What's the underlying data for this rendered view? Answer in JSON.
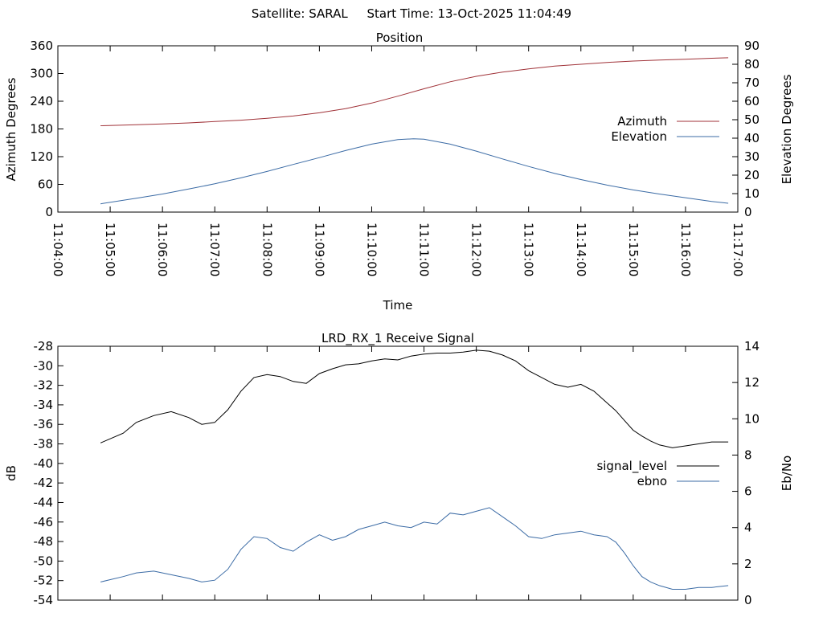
{
  "header": {
    "satellite_label": "Satellite:",
    "satellite_name": "SARAL",
    "start_label": "Start Time:",
    "start_time": "13-Oct-2025 11:04:49"
  },
  "chart_data": [
    {
      "type": "line",
      "title": "Position",
      "xlabel": "Time",
      "ylabel": "Azimuth Degrees",
      "y2label": "Elevation Degrees",
      "x_ticks": [
        "11:04:00",
        "11:05:00",
        "11:06:00",
        "11:07:00",
        "11:08:00",
        "11:09:00",
        "11:10:00",
        "11:11:00",
        "11:12:00",
        "11:13:00",
        "11:14:00",
        "11:15:00",
        "11:16:00",
        "11:17:00"
      ],
      "xlim": [
        "11:04:00",
        "11:17:00"
      ],
      "ylim": [
        0,
        360
      ],
      "y_ticks": [
        0,
        60,
        120,
        180,
        240,
        300,
        360
      ],
      "y2lim": [
        0,
        90
      ],
      "y2_ticks": [
        0,
        10,
        20,
        30,
        40,
        50,
        60,
        70,
        80,
        90
      ],
      "legend_position": "right",
      "grid": false,
      "series": [
        {
          "name": "Azimuth",
          "axis": "y",
          "color": "#a03238",
          "x": [
            "11:04:49",
            "11:05:30",
            "11:06:00",
            "11:06:30",
            "11:07:00",
            "11:07:30",
            "11:08:00",
            "11:08:30",
            "11:09:00",
            "11:09:30",
            "11:10:00",
            "11:10:30",
            "11:11:00",
            "11:11:30",
            "11:12:00",
            "11:12:30",
            "11:13:00",
            "11:13:30",
            "11:14:00",
            "11:14:30",
            "11:15:00",
            "11:15:30",
            "11:16:00",
            "11:16:30",
            "11:16:49"
          ],
          "values": [
            187,
            189,
            191,
            193,
            196,
            199,
            203,
            208,
            215,
            224,
            236,
            251,
            267,
            282,
            294,
            303,
            310,
            316,
            320,
            324,
            327,
            329,
            331,
            333,
            334
          ]
        },
        {
          "name": "Elevation",
          "axis": "y2",
          "color": "#3b6ba5",
          "x": [
            "11:04:49",
            "11:05:30",
            "11:06:00",
            "11:06:30",
            "11:07:00",
            "11:07:30",
            "11:08:00",
            "11:08:30",
            "11:09:00",
            "11:09:30",
            "11:10:00",
            "11:10:30",
            "11:10:48",
            "11:11:00",
            "11:11:30",
            "11:12:00",
            "11:12:30",
            "11:13:00",
            "11:13:30",
            "11:14:00",
            "11:14:30",
            "11:15:00",
            "11:15:30",
            "11:16:00",
            "11:16:30",
            "11:16:49"
          ],
          "values": [
            4.5,
            7.5,
            9.8,
            12.5,
            15.3,
            18.5,
            22,
            25.8,
            29.5,
            33.3,
            36.8,
            39.2,
            39.7,
            39.5,
            36.8,
            33,
            28.8,
            24.7,
            20.9,
            17.6,
            14.6,
            12,
            9.8,
            7.8,
            5.8,
            4.8
          ]
        }
      ]
    },
    {
      "type": "line",
      "title": "LRD_RX_1 Receive Signal",
      "xlabel": "",
      "ylabel": "dB",
      "y2label": "Eb/No",
      "x_ticks": [],
      "xlim": [
        "11:04:00",
        "11:17:00"
      ],
      "ylim": [
        -54,
        -28
      ],
      "y_ticks": [
        -54,
        -52,
        -50,
        -48,
        -46,
        -44,
        -42,
        -40,
        -38,
        -36,
        -34,
        -32,
        -30,
        -28
      ],
      "y2lim": [
        0,
        14
      ],
      "y2_ticks": [
        0,
        2,
        4,
        6,
        8,
        10,
        12,
        14
      ],
      "legend_position": "right",
      "grid": false,
      "series": [
        {
          "name": "signal_level",
          "axis": "y",
          "color": "#000000",
          "x": [
            "11:04:49",
            "11:05:15",
            "11:05:30",
            "11:05:50",
            "11:06:10",
            "11:06:30",
            "11:06:45",
            "11:07:00",
            "11:07:15",
            "11:07:30",
            "11:07:45",
            "11:08:00",
            "11:08:15",
            "11:08:30",
            "11:08:45",
            "11:09:00",
            "11:09:15",
            "11:09:30",
            "11:09:45",
            "11:10:00",
            "11:10:15",
            "11:10:30",
            "11:10:45",
            "11:11:00",
            "11:11:15",
            "11:11:30",
            "11:11:45",
            "11:12:00",
            "11:12:15",
            "11:12:30",
            "11:12:45",
            "11:13:00",
            "11:13:15",
            "11:13:30",
            "11:13:45",
            "11:14:00",
            "11:14:15",
            "11:14:30",
            "11:14:40",
            "11:14:50",
            "11:15:00",
            "11:15:10",
            "11:15:20",
            "11:15:30",
            "11:15:45",
            "11:16:00",
            "11:16:15",
            "11:16:30",
            "11:16:49"
          ],
          "values": [
            -37.9,
            -36.9,
            -35.8,
            -35.1,
            -34.7,
            -35.3,
            -36.0,
            -35.8,
            -34.5,
            -32.6,
            -31.2,
            -30.9,
            -31.1,
            -31.6,
            -31.8,
            -30.8,
            -30.3,
            -29.9,
            -29.8,
            -29.5,
            -29.3,
            -29.4,
            -29.0,
            -28.8,
            -28.7,
            -28.7,
            -28.6,
            -28.4,
            -28.5,
            -28.9,
            -29.5,
            -30.5,
            -31.2,
            -31.9,
            -32.2,
            -31.9,
            -32.6,
            -33.8,
            -34.6,
            -35.6,
            -36.6,
            -37.2,
            -37.7,
            -38.1,
            -38.4,
            -38.2,
            -38.0,
            -37.8,
            -37.8
          ]
        },
        {
          "name": "ebno",
          "axis": "y2",
          "color": "#3b6ba5",
          "x": [
            "11:04:49",
            "11:05:15",
            "11:05:30",
            "11:05:50",
            "11:06:10",
            "11:06:30",
            "11:06:45",
            "11:07:00",
            "11:07:15",
            "11:07:30",
            "11:07:45",
            "11:08:00",
            "11:08:15",
            "11:08:30",
            "11:08:45",
            "11:09:00",
            "11:09:15",
            "11:09:30",
            "11:09:45",
            "11:10:00",
            "11:10:15",
            "11:10:30",
            "11:10:45",
            "11:11:00",
            "11:11:15",
            "11:11:30",
            "11:11:45",
            "11:12:00",
            "11:12:15",
            "11:12:30",
            "11:12:45",
            "11:13:00",
            "11:13:15",
            "11:13:30",
            "11:13:45",
            "11:14:00",
            "11:14:15",
            "11:14:30",
            "11:14:40",
            "11:14:50",
            "11:15:00",
            "11:15:10",
            "11:15:20",
            "11:15:30",
            "11:15:45",
            "11:16:00",
            "11:16:15",
            "11:16:30",
            "11:16:49"
          ],
          "values": [
            1.0,
            1.3,
            1.5,
            1.6,
            1.4,
            1.2,
            1.0,
            1.1,
            1.7,
            2.8,
            3.5,
            3.4,
            2.9,
            2.7,
            3.2,
            3.6,
            3.3,
            3.5,
            3.9,
            4.1,
            4.3,
            4.1,
            4.0,
            4.3,
            4.2,
            4.8,
            4.7,
            4.9,
            5.1,
            4.6,
            4.1,
            3.5,
            3.4,
            3.6,
            3.7,
            3.8,
            3.6,
            3.5,
            3.2,
            2.6,
            1.9,
            1.3,
            1.0,
            0.8,
            0.6,
            0.6,
            0.7,
            0.7,
            0.8
          ]
        }
      ]
    }
  ]
}
